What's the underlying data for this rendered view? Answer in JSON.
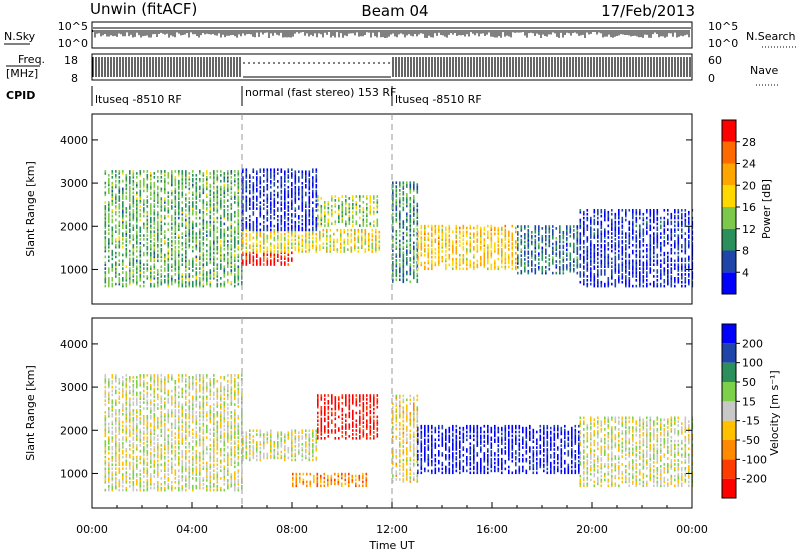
{
  "header": {
    "station": "Unwin (fitACF)",
    "beam": "Beam 04",
    "date": "17/Feb/2013"
  },
  "strips": {
    "nsky_label": "N.Sky",
    "nsky_ticks": [
      "10^5",
      "10^0"
    ],
    "nsearch_label": "N.Search",
    "nsearch_ticks": [
      "10^5",
      "10^0"
    ],
    "freq_label": "Freq.",
    "freq_unit": "[MHz]",
    "freq_ticks": [
      "18",
      "8"
    ],
    "nave_label": "Nave",
    "nave_ticks": [
      "60",
      "0"
    ],
    "cpid_label": "CPID",
    "cpid_segments": [
      {
        "label": "ltuseq -8510 RF",
        "start": 0,
        "end": 6
      },
      {
        "label": "normal (fast stereo) 153 RF",
        "start": 6,
        "end": 12
      },
      {
        "label": "ltuseq -8510 RF",
        "start": 12,
        "end": 24
      }
    ]
  },
  "chart_data": [
    {
      "type": "heatmap",
      "name": "power",
      "title": "",
      "ylabel": "Slant Range [km]",
      "ylim": [
        200,
        4600
      ],
      "yticks": [
        1000,
        2000,
        3000,
        4000
      ],
      "xlim": [
        0,
        24
      ],
      "colorbar_label": "Power [dB]",
      "colorbar_ticks": [
        "4",
        "8",
        "12",
        "16",
        "20",
        "24",
        "28"
      ],
      "colors": [
        "#0000ff",
        "#1f45a8",
        "#2a8f5a",
        "#7cc84a",
        "#ffd800",
        "#ffa500",
        "#ff6a00",
        "#ff0000"
      ],
      "regions": [
        {
          "t0": 0.5,
          "t1": 6,
          "r0": 600,
          "r1": 3300,
          "level": 0.38
        },
        {
          "t0": 6,
          "t1": 8,
          "r0": 1100,
          "r1": 1400,
          "level": 0.95
        },
        {
          "t0": 6,
          "t1": 11.5,
          "r0": 1400,
          "r1": 1900,
          "level": 0.55
        },
        {
          "t0": 6,
          "t1": 9,
          "r0": 1900,
          "r1": 3300,
          "level": 0.12
        },
        {
          "t0": 9,
          "t1": 11.5,
          "r0": 2000,
          "r1": 2700,
          "level": 0.45
        },
        {
          "t0": 12,
          "t1": 13,
          "r0": 700,
          "r1": 3000,
          "level": 0.3
        },
        {
          "t0": 13,
          "t1": 17,
          "r0": 1000,
          "r1": 2000,
          "level": 0.62
        },
        {
          "t0": 17,
          "t1": 19.5,
          "r0": 900,
          "r1": 2000,
          "level": 0.25
        },
        {
          "t0": 19.5,
          "t1": 24,
          "r0": 600,
          "r1": 2400,
          "level": 0.12
        }
      ]
    },
    {
      "type": "heatmap",
      "name": "velocity",
      "title": "",
      "ylabel": "Slant Range [km]",
      "xlabel": "Time UT",
      "ylim": [
        200,
        4600
      ],
      "yticks": [
        1000,
        2000,
        3000,
        4000
      ],
      "xlim": [
        0,
        24
      ],
      "xticks": [
        "00:00",
        "04:00",
        "08:00",
        "12:00",
        "16:00",
        "20:00",
        "00:00"
      ],
      "colorbar_label": "Velocity [m s⁻¹]",
      "colorbar_ticks": [
        "200",
        "100",
        "50",
        "15",
        "-15",
        "-50",
        "-100",
        "-200"
      ],
      "colors": [
        "#ff0000",
        "#ff3c00",
        "#ff8a00",
        "#ffc000",
        "#c8c8c8",
        "#7cd04a",
        "#2a8f5a",
        "#1f45a8",
        "#0000ff"
      ],
      "regions": [
        {
          "t0": 0.5,
          "t1": 6,
          "r0": 600,
          "r1": 3300,
          "level": 0.5
        },
        {
          "t0": 6,
          "t1": 9,
          "r0": 1300,
          "r1": 2000,
          "level": 0.5
        },
        {
          "t0": 9,
          "t1": 11.5,
          "r0": 1800,
          "r1": 2800,
          "level": 0.05
        },
        {
          "t0": 8,
          "t1": 11,
          "r0": 700,
          "r1": 1000,
          "level": 0.28
        },
        {
          "t0": 12,
          "t1": 13,
          "r0": 800,
          "r1": 2800,
          "level": 0.45
        },
        {
          "t0": 13,
          "t1": 19.5,
          "r0": 1000,
          "r1": 2100,
          "level": 0.95
        },
        {
          "t0": 19.5,
          "t1": 24,
          "r0": 700,
          "r1": 2300,
          "level": 0.5
        }
      ]
    }
  ]
}
